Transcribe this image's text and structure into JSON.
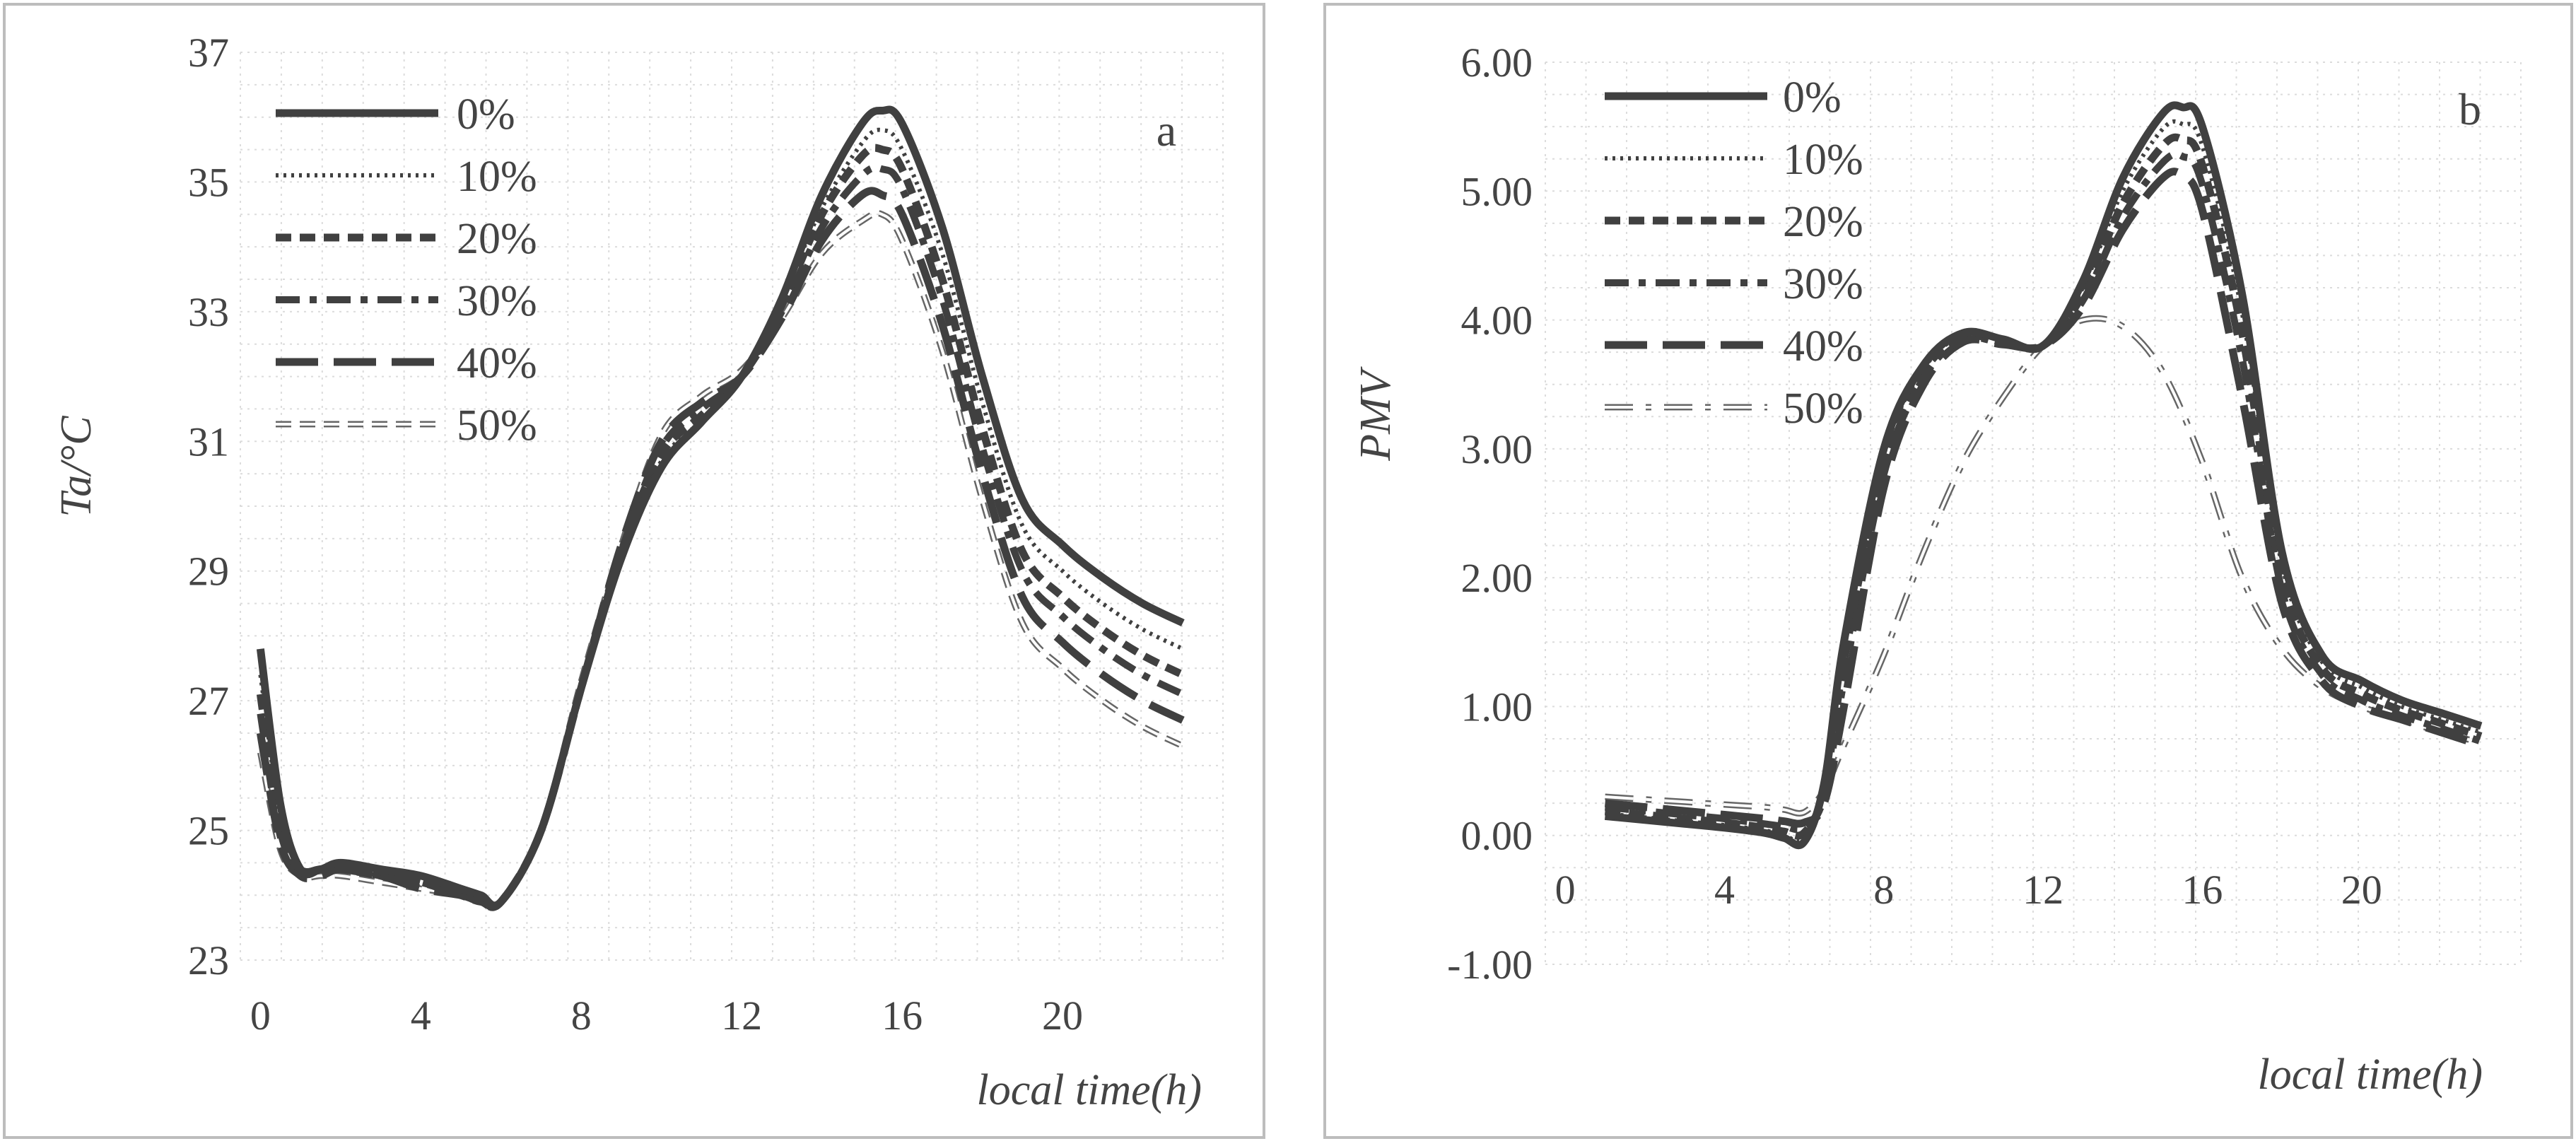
{
  "chart_data": [
    {
      "type": "line",
      "panel_label": "a",
      "title": "",
      "xlabel": "local time(h)",
      "ylabel": "Ta/°C",
      "xlim": [
        -0.5,
        24
      ],
      "ylim": [
        23,
        37
      ],
      "x_ticks": [
        0,
        4,
        8,
        12,
        16,
        20
      ],
      "y_ticks": [
        23,
        25,
        27,
        29,
        31,
        33,
        35,
        37
      ],
      "y_tick_labels": [
        "23",
        "25",
        "27",
        "29",
        "31",
        "33",
        "35",
        "37"
      ],
      "x_tick_labels": [
        "0",
        "4",
        "8",
        "12",
        "16",
        "20"
      ],
      "grid": true,
      "legend_position": "top-left",
      "series": [
        {
          "name": "0%",
          "style": "solid-thick",
          "color": "#404040",
          "x": [
            0,
            0.5,
            1,
            1.5,
            2,
            3,
            4,
            5,
            5.5,
            6,
            7,
            8,
            9,
            10,
            11,
            12,
            13,
            14,
            15,
            15.5,
            16,
            17,
            18,
            19,
            20,
            21,
            22,
            23
          ],
          "y": [
            27.8,
            25.4,
            24.4,
            24.4,
            24.5,
            24.4,
            24.3,
            24.1,
            24.0,
            23.9,
            25.0,
            27.2,
            29.2,
            30.6,
            31.3,
            32.0,
            33.2,
            34.8,
            35.9,
            36.1,
            35.9,
            34.3,
            32.0,
            30.1,
            29.4,
            28.9,
            28.5,
            28.2
          ]
        },
        {
          "name": "10%",
          "style": "dotted",
          "color": "#404040",
          "x": [
            0,
            0.5,
            1,
            1.5,
            2,
            3,
            4,
            5,
            5.5,
            6,
            7,
            8,
            9,
            10,
            11,
            12,
            13,
            14,
            15,
            15.5,
            16,
            17,
            18,
            19,
            20,
            21,
            22,
            23
          ],
          "y": [
            27.4,
            25.2,
            24.4,
            24.4,
            24.4,
            24.3,
            24.2,
            24.0,
            24.0,
            23.9,
            25.0,
            27.2,
            29.2,
            30.7,
            31.3,
            32.0,
            33.2,
            34.6,
            35.6,
            35.8,
            35.5,
            33.9,
            31.6,
            29.7,
            29.0,
            28.5,
            28.1,
            27.8
          ]
        },
        {
          "name": "20%",
          "style": "dashed",
          "color": "#404040",
          "x": [
            0,
            0.5,
            1,
            1.5,
            2,
            3,
            4,
            5,
            5.5,
            6,
            7,
            8,
            9,
            10,
            11,
            12,
            13,
            14,
            15,
            15.5,
            16,
            17,
            18,
            19,
            20,
            21,
            22,
            23
          ],
          "y": [
            27.1,
            25.0,
            24.4,
            24.4,
            24.4,
            24.3,
            24.2,
            24.0,
            23.9,
            23.9,
            25.0,
            27.2,
            29.3,
            30.8,
            31.4,
            32.0,
            33.1,
            34.5,
            35.4,
            35.5,
            35.2,
            33.5,
            31.2,
            29.3,
            28.6,
            28.1,
            27.7,
            27.4
          ]
        },
        {
          "name": "30%",
          "style": "dash-dot",
          "color": "#404040",
          "x": [
            0,
            0.5,
            1,
            1.5,
            2,
            3,
            4,
            5,
            5.5,
            6,
            7,
            8,
            9,
            10,
            11,
            12,
            13,
            14,
            15,
            15.5,
            16,
            17,
            18,
            19,
            20,
            21,
            22,
            23
          ],
          "y": [
            26.8,
            24.9,
            24.4,
            24.4,
            24.4,
            24.3,
            24.2,
            24.0,
            23.9,
            23.9,
            25.0,
            27.2,
            29.3,
            30.9,
            31.5,
            32.0,
            33.0,
            34.3,
            35.1,
            35.2,
            34.9,
            33.2,
            30.9,
            29.0,
            28.3,
            27.8,
            27.4,
            27.1
          ]
        },
        {
          "name": "40%",
          "style": "long-dash",
          "color": "#404040",
          "x": [
            0,
            0.5,
            1,
            1.5,
            2,
            3,
            4,
            5,
            5.5,
            6,
            7,
            8,
            9,
            10,
            11,
            12,
            13,
            14,
            15,
            15.5,
            16,
            17,
            18,
            19,
            20,
            21,
            22,
            23
          ],
          "y": [
            26.5,
            24.8,
            24.3,
            24.3,
            24.4,
            24.3,
            24.1,
            24.0,
            23.9,
            23.9,
            25.0,
            27.2,
            29.4,
            31.0,
            31.6,
            32.0,
            32.9,
            34.1,
            34.8,
            34.8,
            34.5,
            32.8,
            30.5,
            28.6,
            27.9,
            27.4,
            27.0,
            26.7
          ]
        },
        {
          "name": "50%",
          "style": "hollow-dash",
          "color": "#666666",
          "x": [
            0,
            0.5,
            1,
            1.5,
            2,
            3,
            4,
            5,
            5.5,
            6,
            7,
            8,
            9,
            10,
            11,
            12,
            13,
            14,
            15,
            15.5,
            16,
            17,
            18,
            19,
            20,
            21,
            22,
            23
          ],
          "y": [
            26.2,
            24.7,
            24.3,
            24.3,
            24.3,
            24.2,
            24.1,
            24.0,
            23.9,
            23.9,
            25.0,
            27.3,
            29.4,
            31.1,
            31.7,
            32.1,
            32.9,
            33.9,
            34.4,
            34.5,
            34.1,
            32.4,
            30.1,
            28.2,
            27.5,
            27.0,
            26.6,
            26.3
          ]
        }
      ]
    },
    {
      "type": "line",
      "panel_label": "b",
      "title": "",
      "xlabel": "local time(h)",
      "ylabel": "PMV",
      "xlim": [
        -0.5,
        24
      ],
      "ylim": [
        -1,
        6
      ],
      "x_ticks": [
        0,
        4,
        8,
        12,
        16,
        20
      ],
      "y_ticks": [
        -1,
        0,
        1,
        2,
        3,
        4,
        5,
        6
      ],
      "y_tick_labels": [
        "-1.00",
        "0.00",
        "1.00",
        "2.00",
        "3.00",
        "4.00",
        "5.00",
        "6.00"
      ],
      "x_tick_labels": [
        "0",
        "4",
        "8",
        "12",
        "16",
        "20"
      ],
      "grid": true,
      "legend_position": "top-left",
      "series": [
        {
          "name": "0%",
          "style": "solid-thick",
          "color": "#404040",
          "x": [
            1,
            2,
            3,
            4,
            5,
            5.5,
            6,
            6.5,
            7,
            8,
            9,
            10,
            11,
            12,
            13,
            14,
            15,
            15.5,
            16,
            17,
            18,
            19,
            20,
            21,
            22,
            23
          ],
          "y": [
            0.15,
            0.12,
            0.09,
            0.06,
            0.02,
            -0.02,
            -0.05,
            0.4,
            1.5,
            3.0,
            3.65,
            3.9,
            3.85,
            3.8,
            4.3,
            5.1,
            5.6,
            5.65,
            5.5,
            4.2,
            2.2,
            1.4,
            1.2,
            1.05,
            0.95,
            0.85
          ]
        },
        {
          "name": "10%",
          "style": "dotted",
          "color": "#404040",
          "x": [
            1,
            2,
            3,
            4,
            5,
            5.5,
            6,
            6.5,
            7,
            8,
            9,
            10,
            11,
            12,
            13,
            14,
            15,
            15.5,
            16,
            17,
            18,
            19,
            20,
            21,
            22,
            23
          ],
          "y": [
            0.17,
            0.14,
            0.11,
            0.08,
            0.04,
            0.0,
            -0.02,
            0.38,
            1.45,
            2.95,
            3.62,
            3.88,
            3.84,
            3.8,
            4.25,
            5.0,
            5.48,
            5.52,
            5.35,
            4.05,
            2.1,
            1.35,
            1.15,
            1.0,
            0.9,
            0.8
          ]
        },
        {
          "name": "20%",
          "style": "dashed",
          "color": "#404040",
          "x": [
            1,
            2,
            3,
            4,
            5,
            5.5,
            6,
            6.5,
            7,
            8,
            9,
            10,
            11,
            12,
            13,
            14,
            15,
            15.5,
            16,
            17,
            18,
            19,
            20,
            21,
            22,
            23
          ],
          "y": [
            0.19,
            0.16,
            0.13,
            0.1,
            0.06,
            0.03,
            0.02,
            0.35,
            1.35,
            2.9,
            3.6,
            3.87,
            3.83,
            3.8,
            4.2,
            4.9,
            5.35,
            5.4,
            5.2,
            3.9,
            2.0,
            1.3,
            1.1,
            0.97,
            0.87,
            0.77
          ]
        },
        {
          "name": "30%",
          "style": "dash-dot",
          "color": "#404040",
          "x": [
            1,
            2,
            3,
            4,
            5,
            5.5,
            6,
            6.5,
            7,
            8,
            9,
            10,
            11,
            12,
            13,
            14,
            15,
            15.5,
            16,
            17,
            18,
            19,
            20,
            21,
            22,
            23
          ],
          "y": [
            0.22,
            0.19,
            0.16,
            0.13,
            0.09,
            0.07,
            0.06,
            0.3,
            1.2,
            2.8,
            3.55,
            3.85,
            3.82,
            3.8,
            4.15,
            4.8,
            5.22,
            5.27,
            5.05,
            3.7,
            1.9,
            1.25,
            1.05,
            0.93,
            0.83,
            0.73
          ]
        },
        {
          "name": "40%",
          "style": "long-dash",
          "color": "#404040",
          "x": [
            1,
            2,
            3,
            4,
            5,
            5.5,
            6,
            6.5,
            7,
            8,
            9,
            10,
            11,
            12,
            13,
            14,
            15,
            15.5,
            16,
            17,
            18,
            19,
            20,
            21,
            22,
            23
          ],
          "y": [
            0.25,
            0.22,
            0.19,
            0.16,
            0.13,
            0.11,
            0.1,
            0.25,
            1.0,
            2.7,
            3.5,
            3.83,
            3.81,
            3.8,
            4.1,
            4.7,
            5.1,
            5.12,
            4.85,
            3.4,
            1.8,
            1.2,
            1.0,
            0.9,
            0.8,
            0.7
          ]
        },
        {
          "name": "50%",
          "style": "hollow-dash-dot",
          "color": "#666666",
          "x": [
            1,
            2,
            3,
            4,
            5,
            5.5,
            6,
            6.5,
            7,
            8,
            9,
            10,
            11,
            12,
            13,
            14,
            15,
            16,
            17,
            18,
            19,
            20,
            21,
            22,
            23
          ],
          "y": [
            0.3,
            0.28,
            0.26,
            0.24,
            0.22,
            0.2,
            0.18,
            0.35,
            0.7,
            1.4,
            2.2,
            2.9,
            3.4,
            3.8,
            4.0,
            3.95,
            3.6,
            2.9,
            2.0,
            1.45,
            1.15,
            1.0,
            0.9,
            0.8,
            0.72
          ]
        }
      ]
    }
  ]
}
